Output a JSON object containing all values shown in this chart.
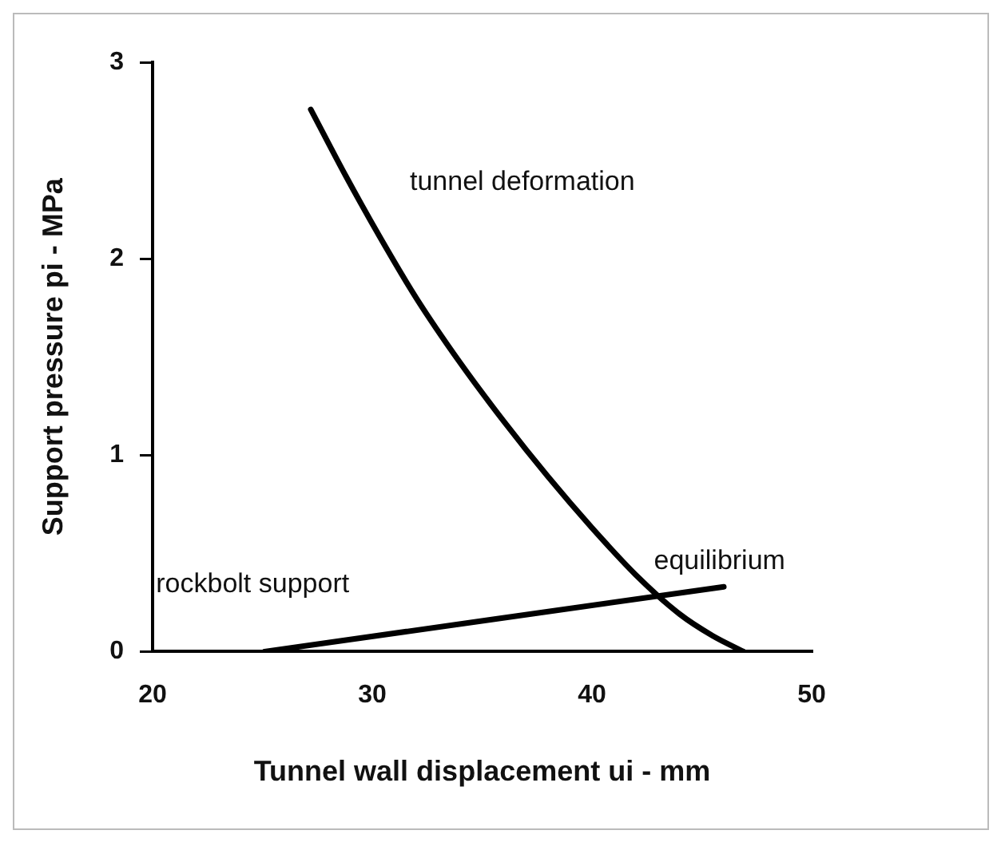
{
  "chart_data": {
    "type": "line",
    "xlabel": "Tunnel wall displacement ui - mm",
    "ylabel": "Support pressure pi - MPa",
    "xlim": [
      20,
      50
    ],
    "xticks": [
      20,
      30,
      40,
      50
    ],
    "ylim": [
      0,
      3
    ],
    "yticks": [
      0,
      1,
      2,
      3
    ],
    "grid": false,
    "legend": false,
    "marker": "none",
    "line_style": "solid",
    "series": [
      {
        "name": "tunnel deformation",
        "color": "#000000",
        "x": [
          27.2,
          28.8,
          30.4,
          32,
          34,
          36,
          38,
          40,
          42,
          44,
          45.5,
          46.9
        ],
        "values": [
          2.76,
          2.42,
          2.1,
          1.8,
          1.47,
          1.17,
          0.89,
          0.63,
          0.39,
          0.19,
          0.08,
          0
        ]
      },
      {
        "name": "rockbolt support",
        "color": "#000000",
        "x": [
          25.1,
          46.0
        ],
        "values": [
          0,
          0.33
        ]
      }
    ],
    "annotations": [
      {
        "text": "equilibrium",
        "x": 43.4,
        "y": 0.28
      }
    ]
  }
}
